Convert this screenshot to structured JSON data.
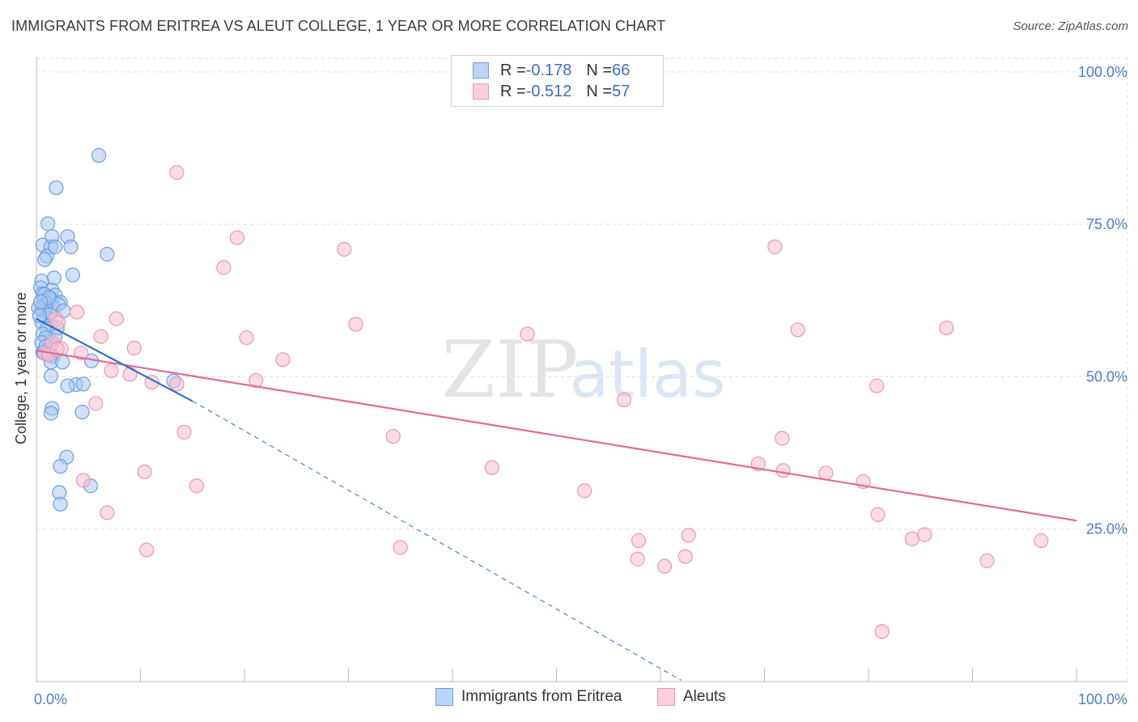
{
  "title": "IMMIGRANTS FROM ERITREA VS ALEUT COLLEGE, 1 YEAR OR MORE CORRELATION CHART",
  "source": "Source: ZipAtlas.com",
  "watermark": {
    "zip": "ZIP",
    "atlas": "atlas"
  },
  "legend": {
    "eritrea": {
      "r_label": "R = ",
      "r_value": "-0.178",
      "n_label": "N = ",
      "n_value": "66"
    },
    "aleut": {
      "r_label": "R = ",
      "r_value": "-0.512",
      "n_label": "N = ",
      "n_value": "57"
    }
  },
  "bottom_legend": {
    "eritrea": "Immigrants from Eritrea",
    "aleut": "Aleuts"
  },
  "colors": {
    "eritrea_fill": "#a9c8f2",
    "eritrea_stroke": "#6f9ee0",
    "eritrea_line": "#2e6fd0",
    "aleut_fill": "#f7bfd0",
    "aleut_stroke": "#ec97b3",
    "aleut_line": "#e26a95",
    "grid": "#dddddd",
    "axis_text": "#4a7cc7"
  },
  "chart_data": {
    "type": "scatter",
    "title": "IMMIGRANTS FROM ERITREA VS ALEUT COLLEGE, 1 YEAR OR MORE CORRELATION CHART",
    "xlabel": "",
    "ylabel": "College, 1 year or more",
    "xlim": [
      0,
      100
    ],
    "ylim": [
      0,
      102.5
    ],
    "x_tick_labels": [
      "0.0%",
      "100.0%"
    ],
    "y_ticks": [
      25,
      50,
      75,
      100
    ],
    "y_tick_labels": [
      "25.0%",
      "50.0%",
      "75.0%",
      "100.0%"
    ],
    "series": [
      {
        "name": "Immigrants from Eritrea",
        "points": [
          [
            6.0,
            86.3
          ],
          [
            1.9,
            81.0
          ],
          [
            1.1,
            75.1
          ],
          [
            0.6,
            71.6
          ],
          [
            1.4,
            71.3
          ],
          [
            1.5,
            73.0
          ],
          [
            3.0,
            73.0
          ],
          [
            3.3,
            71.3
          ],
          [
            1.0,
            69.8
          ],
          [
            1.8,
            71.3
          ],
          [
            0.8,
            69.2
          ],
          [
            6.8,
            70.1
          ],
          [
            3.5,
            66.7
          ],
          [
            1.7,
            66.2
          ],
          [
            0.5,
            65.7
          ],
          [
            0.4,
            64.6
          ],
          [
            1.5,
            64.2
          ],
          [
            0.6,
            63.6
          ],
          [
            1.8,
            63.4
          ],
          [
            0.8,
            63.5
          ],
          [
            1.4,
            62.8
          ],
          [
            0.7,
            62.4
          ],
          [
            2.3,
            62.2
          ],
          [
            1.0,
            62.0
          ],
          [
            0.6,
            61.5
          ],
          [
            1.6,
            61.3
          ],
          [
            0.9,
            61.4
          ],
          [
            2.1,
            61.9
          ],
          [
            0.5,
            61.0
          ],
          [
            0.7,
            60.7
          ],
          [
            0.2,
            61.3
          ],
          [
            1.3,
            60.2
          ],
          [
            0.5,
            59.0
          ],
          [
            1.3,
            58.4
          ],
          [
            1.0,
            57.9
          ],
          [
            0.6,
            57.0
          ],
          [
            1.8,
            56.6
          ],
          [
            0.9,
            56.4
          ],
          [
            0.5,
            55.6
          ],
          [
            1.4,
            55.2
          ],
          [
            0.6,
            54.0
          ],
          [
            1.1,
            53.6
          ],
          [
            1.6,
            53.3
          ],
          [
            0.7,
            54.1
          ],
          [
            5.3,
            52.6
          ],
          [
            1.4,
            52.4
          ],
          [
            2.5,
            52.4
          ],
          [
            1.4,
            50.1
          ],
          [
            3.8,
            48.7
          ],
          [
            3.0,
            48.5
          ],
          [
            4.5,
            48.8
          ],
          [
            13.2,
            49.3
          ],
          [
            1.5,
            44.8
          ],
          [
            1.4,
            44.0
          ],
          [
            4.4,
            44.2
          ],
          [
            2.9,
            36.8
          ],
          [
            2.3,
            35.3
          ],
          [
            5.2,
            32.1
          ],
          [
            2.2,
            31.0
          ],
          [
            2.3,
            29.1
          ],
          [
            0.9,
            55.0
          ],
          [
            2.0,
            58.0
          ],
          [
            0.3,
            60.0
          ],
          [
            1.2,
            63.0
          ],
          [
            0.4,
            62.3
          ],
          [
            2.6,
            60.8
          ]
        ],
        "trend": [
          [
            0,
            59.5
          ],
          [
            15.0,
            46.0
          ]
        ],
        "trend_extended": [
          [
            15.0,
            46.0
          ],
          [
            62.0,
            0.2
          ]
        ]
      },
      {
        "name": "Aleuts",
        "points": [
          [
            13.5,
            83.5
          ],
          [
            19.3,
            72.8
          ],
          [
            29.6,
            70.9
          ],
          [
            71.0,
            71.3
          ],
          [
            18.0,
            67.9
          ],
          [
            3.9,
            60.6
          ],
          [
            1.9,
            59.5
          ],
          [
            7.7,
            59.5
          ],
          [
            2.1,
            58.9
          ],
          [
            30.7,
            58.6
          ],
          [
            73.2,
            57.7
          ],
          [
            87.5,
            58.0
          ],
          [
            6.2,
            56.6
          ],
          [
            20.2,
            56.4
          ],
          [
            47.2,
            57.0
          ],
          [
            1.5,
            55.6
          ],
          [
            9.4,
            54.7
          ],
          [
            2.4,
            54.6
          ],
          [
            0.8,
            53.8
          ],
          [
            1.2,
            53.6
          ],
          [
            4.3,
            53.9
          ],
          [
            23.7,
            52.8
          ],
          [
            7.2,
            51.0
          ],
          [
            9.0,
            50.4
          ],
          [
            11.1,
            49.1
          ],
          [
            21.1,
            49.4
          ],
          [
            13.5,
            48.8
          ],
          [
            80.8,
            48.5
          ],
          [
            56.5,
            46.2
          ],
          [
            5.7,
            45.6
          ],
          [
            14.2,
            40.9
          ],
          [
            34.3,
            40.2
          ],
          [
            71.7,
            39.9
          ],
          [
            69.4,
            35.7
          ],
          [
            43.8,
            35.1
          ],
          [
            71.8,
            34.6
          ],
          [
            75.9,
            34.2
          ],
          [
            10.4,
            34.4
          ],
          [
            79.5,
            32.8
          ],
          [
            15.4,
            32.1
          ],
          [
            4.5,
            33.0
          ],
          [
            52.7,
            31.3
          ],
          [
            6.8,
            27.7
          ],
          [
            80.9,
            27.4
          ],
          [
            57.9,
            23.1
          ],
          [
            62.7,
            24.0
          ],
          [
            84.2,
            23.4
          ],
          [
            85.4,
            24.1
          ],
          [
            96.6,
            23.1
          ],
          [
            10.6,
            21.6
          ],
          [
            35.0,
            22.0
          ],
          [
            57.8,
            20.1
          ],
          [
            60.4,
            18.9
          ],
          [
            62.4,
            20.5
          ],
          [
            91.4,
            19.8
          ],
          [
            81.3,
            8.2
          ],
          [
            2.0,
            54.5
          ]
        ],
        "trend": [
          [
            0,
            54.3
          ],
          [
            100,
            26.4
          ]
        ]
      }
    ]
  }
}
